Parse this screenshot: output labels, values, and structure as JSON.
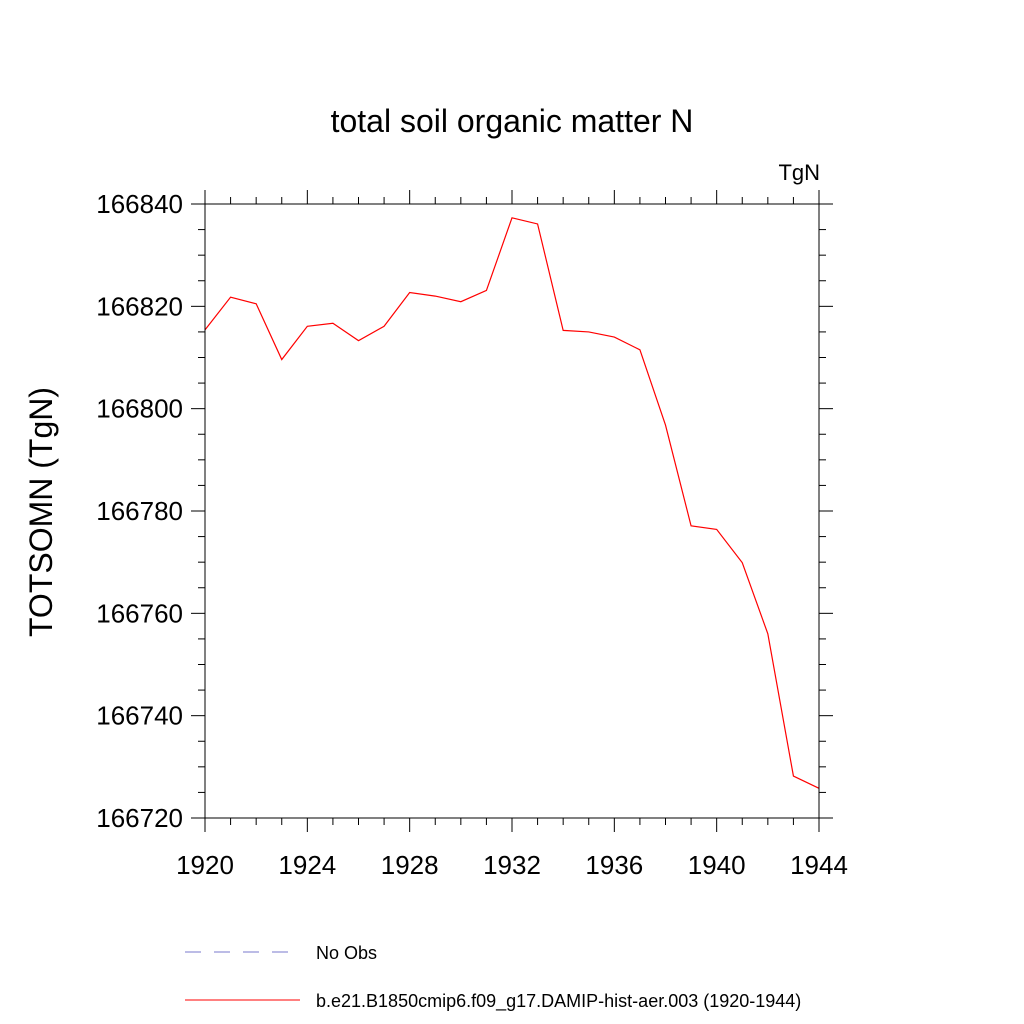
{
  "chart_data": {
    "type": "line",
    "title": "total soil organic matter N",
    "units_label": "TgN",
    "xlabel": "",
    "ylabel": "TOTSOMN  (TgN)",
    "xlim": [
      1920,
      1944
    ],
    "ylim": [
      166720,
      166840
    ],
    "x_ticks": [
      1920,
      1924,
      1928,
      1932,
      1936,
      1940,
      1944
    ],
    "y_ticks": [
      166720,
      166740,
      166760,
      166780,
      166800,
      166820,
      166840
    ],
    "grid": false,
    "x": [
      1920,
      1921,
      1922,
      1923,
      1924,
      1925,
      1926,
      1927,
      1928,
      1929,
      1930,
      1931,
      1932,
      1933,
      1934,
      1935,
      1936,
      1937,
      1938,
      1939,
      1940,
      1941,
      1942,
      1943,
      1944
    ],
    "series": [
      {
        "name": "b.e21.B1850cmip6.f09_g17.DAMIP-hist-aer.003 (1920-1944)",
        "color": "#ff0000",
        "values": [
          166815.4,
          166821.8,
          166820.5,
          166809.6,
          166816.1,
          166816.7,
          166813.3,
          166816.1,
          166822.7,
          166822.0,
          166820.9,
          166823.1,
          166837.3,
          166836.1,
          166815.3,
          166815.0,
          166814.0,
          166811.5,
          166796.8,
          166777.1,
          166776.4,
          166769.9,
          166756.0,
          166728.2,
          166725.8
        ]
      }
    ],
    "legend": {
      "placement": "bottom",
      "entries": [
        {
          "label": "No Obs",
          "style": "dashed",
          "color": "#7a7acc"
        },
        {
          "label": "b.e21.B1850cmip6.f09_g17.DAMIP-hist-aer.003 (1920-1944)",
          "style": "solid",
          "color": "#ff0000"
        }
      ]
    }
  }
}
